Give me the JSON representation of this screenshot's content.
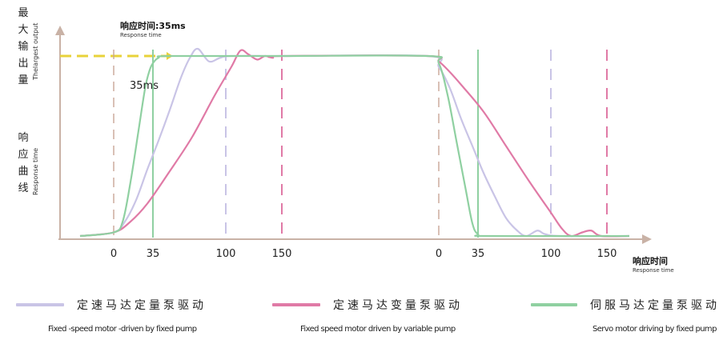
{
  "chart_data": {
    "type": "line",
    "y_axis_label_cn": [
      "最",
      "大",
      "输",
      "出",
      "量"
    ],
    "y_axis_label_en": "Thelargest output",
    "y_axis_sub_cn": [
      "响",
      "应",
      "曲",
      "线"
    ],
    "y_axis_sub_en": "Response time",
    "x_axis_label_cn": "响应时间",
    "x_axis_label_en": "Response time",
    "annotation_cn": "响应时间:35ms",
    "annotation_en": "Response time",
    "annotation_35": "35ms",
    "ticks_rise": [
      "0",
      "35",
      "100",
      "150"
    ],
    "ticks_fall": [
      "0",
      "35",
      "100",
      "150"
    ],
    "tick_values": [
      0,
      35,
      100,
      150
    ],
    "series": [
      {
        "name_cn": "定速马达定量泵驱动",
        "name_en": "Fixed -speed motor -driven by fixed pump",
        "color": "#c9c4e6",
        "marker_time": 100,
        "rise": [
          [
            -30,
            0
          ],
          [
            0,
            0.02
          ],
          [
            10,
            0.08
          ],
          [
            20,
            0.2
          ],
          [
            30,
            0.37
          ],
          [
            40,
            0.53
          ],
          [
            50,
            0.7
          ],
          [
            60,
            0.88
          ],
          [
            68,
            0.99
          ],
          [
            75,
            1.04
          ],
          [
            85,
            0.97
          ],
          [
            95,
            0.99
          ],
          [
            105,
            1.0
          ],
          [
            150,
            1.0
          ]
        ],
        "fall": [
          [
            -10,
            1.0
          ],
          [
            0,
            0.94
          ],
          [
            10,
            0.82
          ],
          [
            20,
            0.65
          ],
          [
            30,
            0.5
          ],
          [
            40,
            0.35
          ],
          [
            50,
            0.22
          ],
          [
            60,
            0.1
          ],
          [
            70,
            0.03
          ],
          [
            78,
            0.0
          ],
          [
            88,
            0.03
          ],
          [
            95,
            0.01
          ],
          [
            110,
            0.0
          ],
          [
            170,
            0.0
          ]
        ]
      },
      {
        "name_cn": "定速马达变量泵驱动",
        "name_en": "Fixed speed motor driven by variable pump",
        "color": "#e07aa6",
        "marker_time": 150,
        "rise": [
          [
            -30,
            0
          ],
          [
            0,
            0.02
          ],
          [
            15,
            0.08
          ],
          [
            30,
            0.18
          ],
          [
            50,
            0.36
          ],
          [
            70,
            0.55
          ],
          [
            90,
            0.78
          ],
          [
            105,
            0.94
          ],
          [
            113,
            1.03
          ],
          [
            120,
            1.01
          ],
          [
            128,
            0.98
          ],
          [
            135,
            1.0
          ],
          [
            142,
            0.99
          ],
          [
            150,
            1.0
          ]
        ],
        "fall": [
          [
            -10,
            1.0
          ],
          [
            0,
            0.97
          ],
          [
            10,
            0.91
          ],
          [
            20,
            0.84
          ],
          [
            40,
            0.69
          ],
          [
            60,
            0.5
          ],
          [
            80,
            0.31
          ],
          [
            100,
            0.13
          ],
          [
            110,
            0.04
          ],
          [
            118,
            0.0
          ],
          [
            128,
            0.02
          ],
          [
            136,
            0.03
          ],
          [
            145,
            0.0
          ],
          [
            170,
            0.0
          ]
        ]
      },
      {
        "name_cn": "伺服马达定量泵驱动",
        "name_en": "Servo motor driving by fixed pump",
        "color": "#8fd0a1",
        "marker_time": 35,
        "rise": [
          [
            -30,
            0
          ],
          [
            0,
            0.02
          ],
          [
            8,
            0.08
          ],
          [
            15,
            0.3
          ],
          [
            22,
            0.58
          ],
          [
            28,
            0.82
          ],
          [
            32,
            0.92
          ],
          [
            35,
            0.96
          ],
          [
            40,
            0.99
          ],
          [
            50,
            1.0
          ],
          [
            150,
            1.0
          ]
        ],
        "fall": [
          [
            -10,
            1.0
          ],
          [
            0,
            0.96
          ],
          [
            8,
            0.78
          ],
          [
            16,
            0.52
          ],
          [
            24,
            0.26
          ],
          [
            30,
            0.07
          ],
          [
            35,
            0.01
          ],
          [
            45,
            0.0
          ],
          [
            170,
            0.0
          ]
        ]
      }
    ],
    "reference_level": 1.0,
    "ylim": [
      0,
      1.05
    ]
  }
}
